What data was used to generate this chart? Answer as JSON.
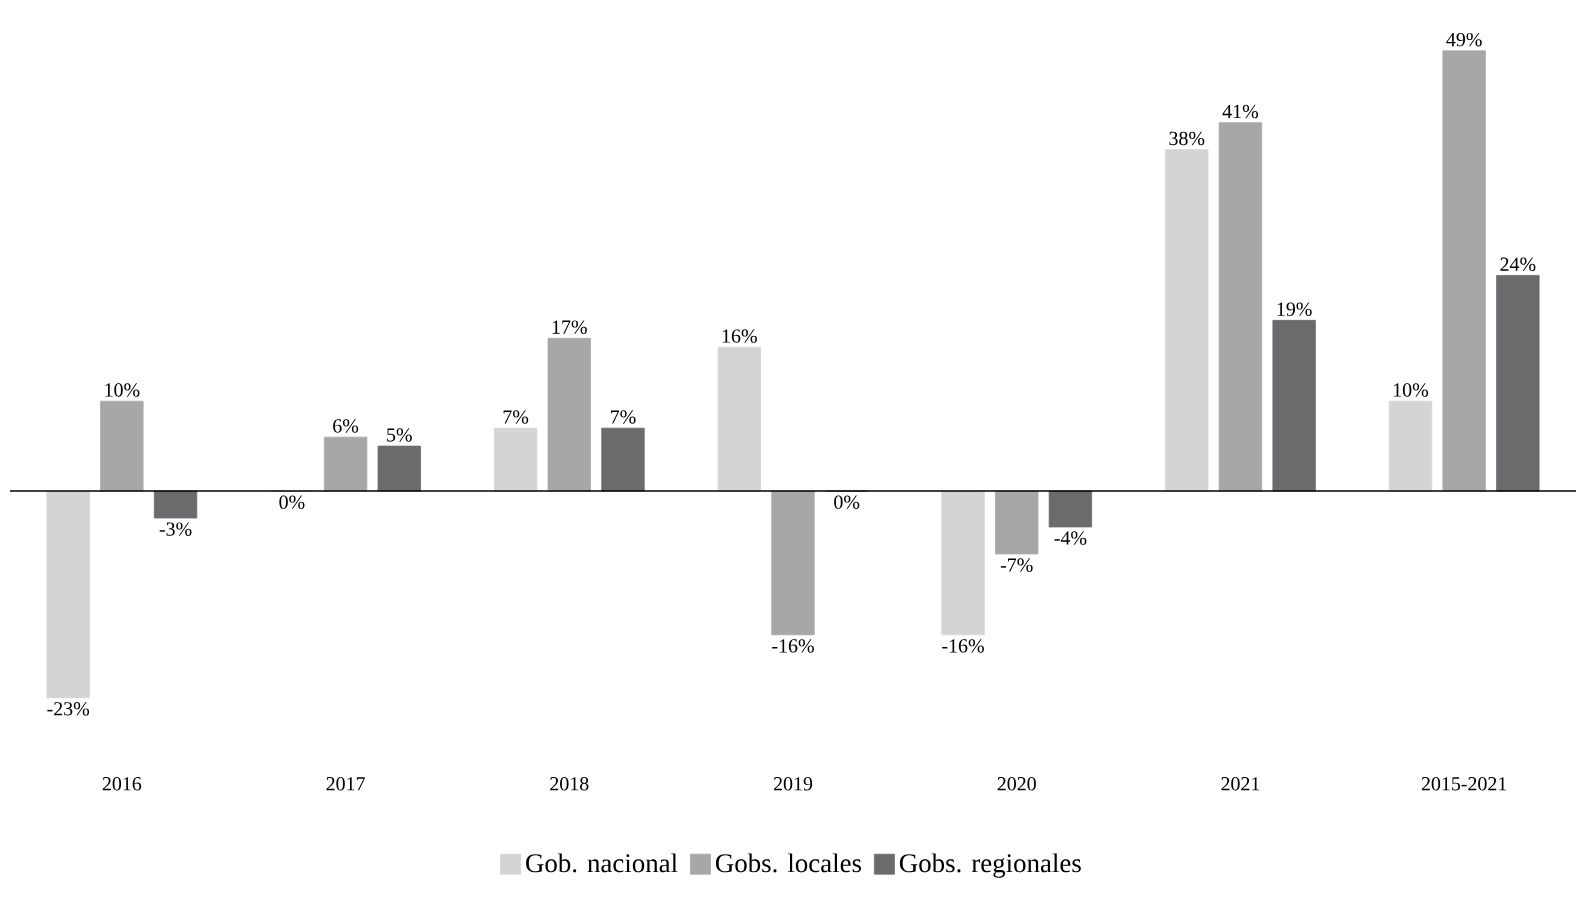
{
  "chart_data": {
    "type": "bar",
    "categories": [
      "2016",
      "2017",
      "2018",
      "2019",
      "2020",
      "2021",
      "2015-2021"
    ],
    "series": [
      {
        "name": "Gob. nacional",
        "color": "#d4d4d4",
        "values": [
          -23,
          0,
          7,
          16,
          -16,
          38,
          10
        ],
        "value_labels": [
          "-23%",
          "0%",
          "7%",
          "16%",
          "-16%",
          "38%",
          "10%"
        ]
      },
      {
        "name": "Gobs. locales",
        "color": "#a7a7a9",
        "values": [
          10,
          6,
          17,
          -16,
          -7,
          41,
          49
        ],
        "value_labels": [
          "10%",
          "6%",
          "17%",
          "-16%",
          "-7%",
          "41%",
          "49%"
        ]
      },
      {
        "name": "Gobs. regionales",
        "color": "#6b6b6e",
        "values": [
          -3,
          5,
          7,
          0,
          -4,
          19,
          24
        ],
        "value_labels": [
          "-3%",
          "5%",
          "7%",
          "0%",
          "-4%",
          "19%",
          "24%"
        ]
      }
    ],
    "relative": false,
    "legend": "bottom"
  }
}
